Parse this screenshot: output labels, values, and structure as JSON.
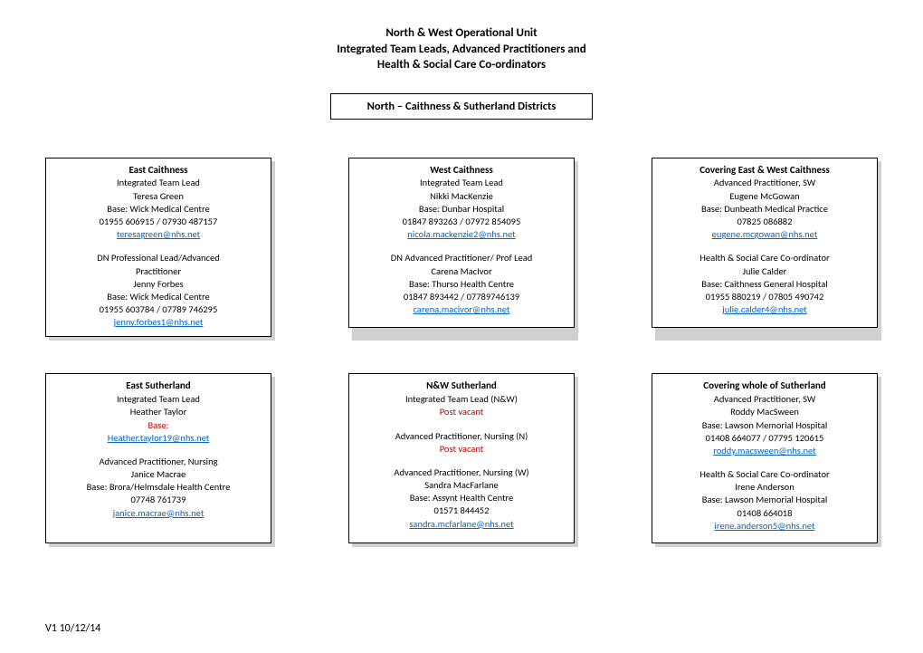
{
  "header": {
    "line1": "North & West Operational Unit",
    "line2": "Integrated Team Leads, Advanced Practitioners and",
    "line3": "Health & Social Care Co-ordinators"
  },
  "district_title": "North – Caithness & Sutherland Districts",
  "cards": {
    "c0": {
      "title": "East Caithness",
      "a_role": "Integrated Team Lead",
      "a_name": "Teresa Green",
      "a_base": "Base: Wick Medical Centre",
      "a_phone": "01955 606915 / 07930 487157",
      "a_email": "teresagreen@nhs.net",
      "b_role1": "DN Professional Lead/Advanced",
      "b_role2": "Practitioner",
      "b_name": "Jenny Forbes",
      "b_base": "Base: Wick Medical Centre",
      "b_phone": "01955 603784 / 07789 746295",
      "b_email": "jenny.forbes1@nhs.net"
    },
    "c1": {
      "title": "West Caithness",
      "a_role": "Integrated Team Lead",
      "a_name": "Nikki MacKenzie",
      "a_base": "Base: Dunbar Hospital",
      "a_phone": "01847 893263 / 07972 854095",
      "a_email": "nicola.mackenzie2@nhs.net",
      "b_role": "DN Advanced Practitioner/ Prof Lead",
      "b_name": "Carena MacIvor",
      "b_base": "Base: Thurso Health Centre",
      "b_phone": "01847 893442 / 07789746139",
      "b_email": "carena.macivor@nhs.net"
    },
    "c2": {
      "title": "Covering East & West Caithness",
      "a_role": "Advanced Practitioner, SW",
      "a_name": "Eugene McGowan",
      "a_base": "Base: Dunbeath Medical Practice",
      "a_phone": "07825 086882",
      "a_email": "eugene.mcgowan@nhs.net",
      "b_role": "Health & Social Care Co-ordinator",
      "b_name": "Julie Calder",
      "b_base": "Base: Caithness General Hospital",
      "b_phone": "01955 880219 / 07805 490742",
      "b_email": "julie.calder4@nhs.net"
    },
    "c3": {
      "title": "East Sutherland",
      "a_role": "Integrated Team Lead",
      "a_name": "Heather Taylor",
      "a_base_label": "Base:",
      "a_email": "Heather.taylor19@nhs.net",
      "b_role": "Advanced Practitioner, Nursing",
      "b_name": "Janice Macrae",
      "b_base": "Base: Brora/Helmsdale Health Centre",
      "b_phone": "07748 761739",
      "b_email": "janice.macrae@nhs.net"
    },
    "c4": {
      "title": "N&W Sutherland",
      "a_role": "Integrated Team Lead (N&W)",
      "a_vacant": "Post vacant",
      "b_role": "Advanced Practitioner, Nursing (N)",
      "b_vacant": "Post vacant",
      "c_role": "Advanced Practitioner, Nursing (W)",
      "c_name": "Sandra MacFarlane",
      "c_base": "Base: Assynt Health Centre",
      "c_phone": "01571 844452",
      "c_email": "sandra.mcfarlane@nhs.net"
    },
    "c5": {
      "title": "Covering whole of Sutherland",
      "a_role": "Advanced Practitioner, SW",
      "a_name": "Roddy MacSween",
      "a_base": "Base: Lawson Memorial Hospital",
      "a_phone": "01408 664077 / 07795 120615",
      "a_email": "roddy.macsween@nhs.net",
      "b_role": "Health & Social Care Co-ordinator",
      "b_name": "Irene Anderson",
      "b_base": "Base: Lawson Memorial Hospital",
      "b_phone": "01408 664018",
      "b_email": "irene.anderson5@nhs.net"
    }
  },
  "footer": "V1 10/12/14"
}
